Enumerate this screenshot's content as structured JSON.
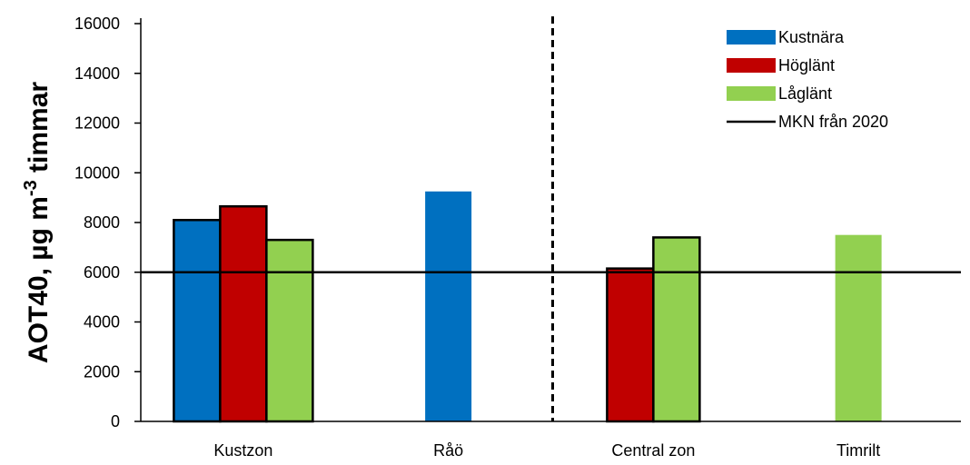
{
  "chart_data": {
    "type": "bar",
    "ylabel_main": "AOT40, µg m",
    "ylabel_sup": "-3",
    "ylabel_tail": " timmar",
    "ylim": [
      0,
      16000
    ],
    "yticks": [
      "0",
      "2000",
      "4000",
      "6000",
      "8000",
      "10000",
      "12000",
      "14000",
      "16000"
    ],
    "categories": [
      "Kustzon",
      "Råö",
      "Central zon",
      "Timrilt"
    ],
    "series": [
      {
        "name": "Kustnära",
        "color": "#0070C0",
        "values": [
          8100,
          9250,
          null,
          null
        ]
      },
      {
        "name": "Höglänt",
        "color": "#C00000",
        "values": [
          8650,
          null,
          6150,
          null
        ]
      },
      {
        "name": "Låglänt",
        "color": "#92D050",
        "values": [
          7300,
          null,
          7400,
          7500
        ]
      }
    ],
    "reference_line": {
      "name": "MKN från 2020",
      "value": 6000,
      "color": "#000000"
    },
    "legend_position": "top-right",
    "divider": "dashed vertical line between Råö and Central zon",
    "grid": false
  }
}
